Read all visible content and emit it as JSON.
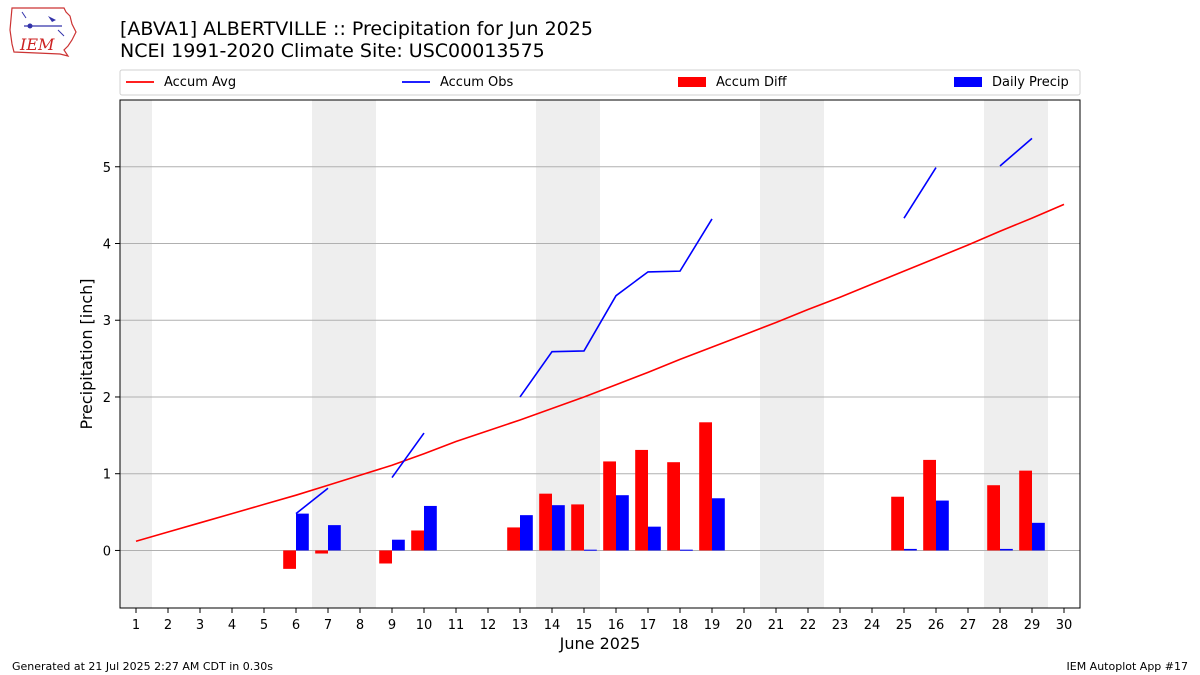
{
  "header": {
    "title_line1": "[ABVA1] ALBERTVILLE :: Precipitation for Jun 2025",
    "title_line2": "NCEI 1991-2020 Climate Site: USC00013575",
    "logo_text": "IEM"
  },
  "footer": {
    "left": "Generated at 21 Jul 2025 2:27 AM CDT in 0.30s",
    "right": "IEM Autoplot App #17"
  },
  "colors": {
    "accum_avg": "#ff0000",
    "accum_obs": "#0000ff",
    "accum_diff": "#ff0000",
    "daily_precip": "#0000ff",
    "weekend_shade": "#eeeeee",
    "grid": "#b0b0b0"
  },
  "chart_data": {
    "type": "bar",
    "xlabel": "June 2025",
    "ylabel": "Precipitation [inch]",
    "xlim": [
      0.5,
      30.5
    ],
    "ylim": [
      -0.75,
      5.87
    ],
    "x_ticks": [
      1,
      2,
      3,
      4,
      5,
      6,
      7,
      8,
      9,
      10,
      11,
      12,
      13,
      14,
      15,
      16,
      17,
      18,
      19,
      20,
      21,
      22,
      23,
      24,
      25,
      26,
      27,
      28,
      29,
      30
    ],
    "y_ticks": [
      0,
      1,
      2,
      3,
      4,
      5
    ],
    "grid": "horizontal",
    "legend": {
      "placement": "top",
      "entries": [
        {
          "label": "Accum Avg",
          "kind": "line",
          "color": "#ff0000"
        },
        {
          "label": "Accum Obs",
          "kind": "line",
          "color": "#0000ff"
        },
        {
          "label": "Accum Diff",
          "kind": "bar",
          "color": "#ff0000"
        },
        {
          "label": "Daily Precip",
          "kind": "bar",
          "color": "#0000ff"
        }
      ]
    },
    "shaded_days": [
      [
        0.5,
        1.5
      ],
      [
        6.5,
        8.5
      ],
      [
        13.5,
        15.5
      ],
      [
        20.5,
        22.5
      ],
      [
        27.5,
        29.5
      ]
    ],
    "accum_avg": [
      [
        1,
        0.12
      ],
      [
        2,
        0.24
      ],
      [
        3,
        0.36
      ],
      [
        4,
        0.48
      ],
      [
        5,
        0.6
      ],
      [
        6,
        0.72
      ],
      [
        7,
        0.85
      ],
      [
        8,
        0.98
      ],
      [
        9,
        1.11
      ],
      [
        10,
        1.26
      ],
      [
        11,
        1.42
      ],
      [
        12,
        1.56
      ],
      [
        13,
        1.7
      ],
      [
        14,
        1.85
      ],
      [
        15,
        2.0
      ],
      [
        16,
        2.16
      ],
      [
        17,
        2.32
      ],
      [
        18,
        2.49
      ],
      [
        19,
        2.65
      ],
      [
        20,
        2.81
      ],
      [
        21,
        2.97
      ],
      [
        22,
        3.14
      ],
      [
        23,
        3.3
      ],
      [
        24,
        3.47
      ],
      [
        25,
        3.64
      ],
      [
        26,
        3.81
      ],
      [
        27,
        3.98
      ],
      [
        28,
        4.16
      ],
      [
        29,
        4.33
      ],
      [
        30,
        4.51
      ]
    ],
    "accum_obs_segments": [
      [
        [
          6,
          0.48
        ],
        [
          7,
          0.81
        ]
      ],
      [
        [
          9,
          0.95
        ],
        [
          10,
          1.53
        ]
      ],
      [
        [
          13,
          2.0
        ],
        [
          14,
          2.59
        ],
        [
          15,
          2.6
        ],
        [
          16,
          3.32
        ],
        [
          17,
          3.63
        ],
        [
          18,
          3.64
        ],
        [
          19,
          4.32
        ]
      ],
      [
        [
          25,
          4.33
        ],
        [
          26,
          4.99
        ]
      ],
      [
        [
          28,
          5.01
        ],
        [
          29,
          5.37
        ]
      ]
    ],
    "accum_diff": [
      [
        6,
        -0.24
      ],
      [
        7,
        -0.04
      ],
      [
        9,
        -0.17
      ],
      [
        10,
        0.26
      ],
      [
        13,
        0.3
      ],
      [
        14,
        0.74
      ],
      [
        15,
        0.6
      ],
      [
        16,
        1.16
      ],
      [
        17,
        1.31
      ],
      [
        18,
        1.15
      ],
      [
        19,
        1.67
      ],
      [
        25,
        0.7
      ],
      [
        26,
        1.18
      ],
      [
        28,
        0.85
      ],
      [
        29,
        1.04
      ]
    ],
    "daily_precip": [
      [
        6,
        0.48
      ],
      [
        7,
        0.33
      ],
      [
        9,
        0.14
      ],
      [
        10,
        0.58
      ],
      [
        13,
        0.46
      ],
      [
        14,
        0.59
      ],
      [
        15,
        0.01
      ],
      [
        16,
        0.72
      ],
      [
        17,
        0.31
      ],
      [
        18,
        0.01
      ],
      [
        19,
        0.68
      ],
      [
        25,
        0.02
      ],
      [
        26,
        0.65
      ],
      [
        28,
        0.02
      ],
      [
        29,
        0.36
      ]
    ]
  }
}
